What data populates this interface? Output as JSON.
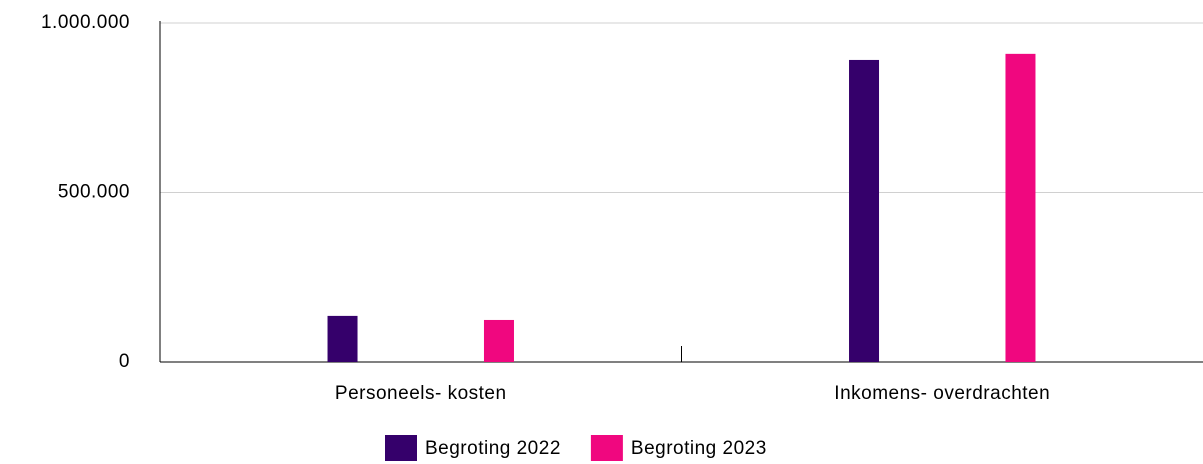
{
  "chart_data": {
    "type": "bar",
    "categories": [
      "Personeels- kosten",
      "Inkomens- overdrachten"
    ],
    "series": [
      {
        "name": "Begroting 2022",
        "color": "#35006b",
        "values": [
          136000,
          891000
        ]
      },
      {
        "name": "Begroting 2023",
        "color": "#f0077f",
        "values": [
          124000,
          909000
        ]
      }
    ],
    "ylim": [
      0,
      1000000
    ],
    "yticks": [
      0,
      {
        "value": 500000,
        "label": "500.000"
      },
      {
        "value": 1000000,
        "label": "1.000.000"
      }
    ],
    "grid": true,
    "legend": "bottom"
  }
}
